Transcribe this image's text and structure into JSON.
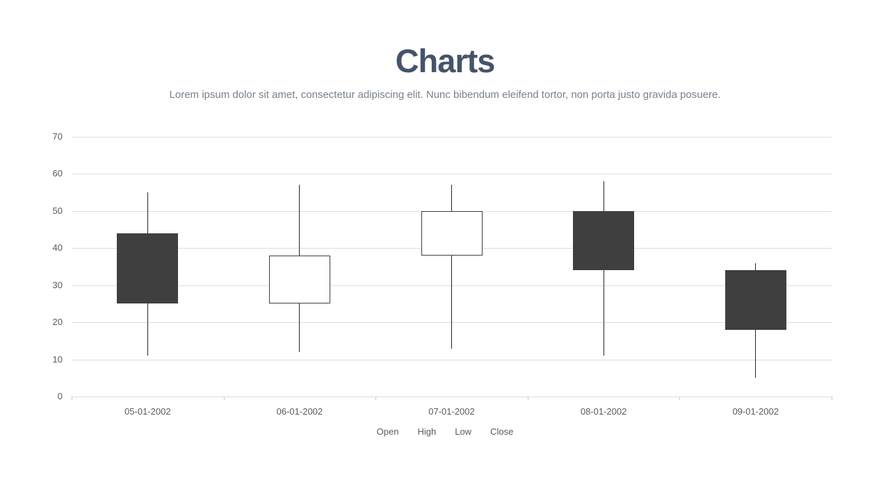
{
  "header": {
    "title": "Charts",
    "subtitle": "Lorem ipsum dolor sit amet, consectetur adipiscing elit. Nunc bibendum eleifend tortor, non porta justo gravida posuere."
  },
  "chart_data": {
    "type": "candlestick",
    "categories": [
      "05-01-2002",
      "06-01-2002",
      "07-01-2002",
      "08-01-2002",
      "09-01-2002"
    ],
    "series": [
      {
        "name": "Open",
        "values": [
          44,
          25,
          38,
          50,
          34
        ]
      },
      {
        "name": "High",
        "values": [
          55,
          57,
          57,
          58,
          36
        ]
      },
      {
        "name": "Low",
        "values": [
          11,
          12,
          13,
          11,
          5
        ]
      },
      {
        "name": "Close",
        "values": [
          25,
          38,
          50,
          34,
          18
        ]
      }
    ],
    "ylim": [
      0,
      70
    ],
    "yticks": [
      0,
      10,
      20,
      30,
      40,
      50,
      60,
      70
    ],
    "grid": true,
    "legend": [
      "Open",
      "High",
      "Low",
      "Close"
    ],
    "legend_position": "bottom",
    "up_style": "hollow",
    "down_style": "filled",
    "colors": {
      "title": "#44546A",
      "subtitle": "#76818D",
      "axis_text": "#595959",
      "gridline": "#DCDCDC",
      "tick": "#C9C9C9",
      "wick": "#262626",
      "down_fill": "#3F3F3F",
      "up_fill": "#FFFFFF",
      "body_border": "#404040"
    }
  }
}
